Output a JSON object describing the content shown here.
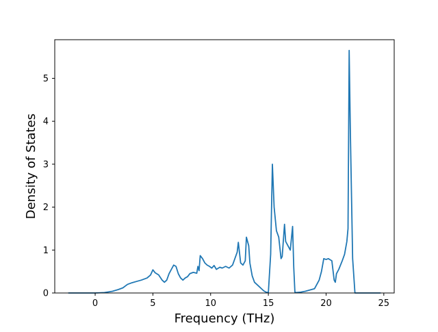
{
  "chart_data": {
    "type": "line",
    "title": "",
    "xlabel": "Frequency (THz)",
    "ylabel": "Density of States",
    "xlim": [
      -3.5,
      25.9
    ],
    "ylim": [
      0,
      5.9
    ],
    "xticks": [
      0,
      5,
      10,
      15,
      20,
      25
    ],
    "yticks": [
      0,
      1,
      2,
      3,
      4,
      5
    ],
    "grid": false,
    "legend": "none",
    "line_color": "#1f77b4",
    "series": [
      {
        "x": [
          -2.3,
          -1.0,
          0.0,
          0.8,
          1.5,
          2.0,
          2.4,
          2.8,
          3.2,
          3.6,
          4.0,
          4.5,
          4.8,
          5.0,
          5.2,
          5.5,
          5.8,
          6.0,
          6.2,
          6.4,
          6.6,
          6.8,
          7.0,
          7.2,
          7.4,
          7.6,
          7.8,
          8.0,
          8.2,
          8.5,
          8.8,
          8.9,
          9.0,
          9.1,
          9.3,
          9.5,
          9.7,
          9.9,
          10.1,
          10.3,
          10.5,
          10.8,
          11.0,
          11.3,
          11.6,
          11.9,
          12.1,
          12.3,
          12.4,
          12.6,
          12.8,
          13.0,
          13.1,
          13.3,
          13.4,
          13.6,
          13.8,
          14.0,
          14.2,
          14.4,
          14.6,
          14.8,
          15.0,
          15.2,
          15.35,
          15.5,
          15.7,
          15.9,
          16.1,
          16.2,
          16.4,
          16.5,
          16.7,
          16.9,
          17.1,
          17.2,
          17.3,
          17.4,
          17.8,
          18.2,
          18.6,
          19.0,
          19.2,
          19.4,
          19.6,
          19.8,
          20.0,
          20.2,
          20.5,
          20.7,
          20.8,
          20.9,
          21.1,
          21.4,
          21.6,
          21.8,
          21.9,
          22.0,
          22.1,
          22.3,
          22.5,
          23.0,
          24.0,
          24.7
        ],
        "y": [
          0.0,
          0.0,
          0.0,
          0.01,
          0.04,
          0.08,
          0.12,
          0.2,
          0.24,
          0.27,
          0.3,
          0.35,
          0.42,
          0.54,
          0.47,
          0.42,
          0.3,
          0.25,
          0.3,
          0.45,
          0.55,
          0.65,
          0.62,
          0.45,
          0.35,
          0.3,
          0.35,
          0.38,
          0.45,
          0.48,
          0.46,
          0.62,
          0.52,
          0.87,
          0.8,
          0.7,
          0.65,
          0.62,
          0.58,
          0.64,
          0.55,
          0.6,
          0.58,
          0.62,
          0.58,
          0.65,
          0.8,
          0.95,
          1.18,
          0.7,
          0.65,
          0.75,
          1.3,
          1.1,
          0.7,
          0.4,
          0.25,
          0.2,
          0.15,
          0.1,
          0.05,
          0.02,
          0.01,
          0.9,
          3.0,
          2.0,
          1.45,
          1.3,
          0.8,
          0.85,
          1.6,
          1.2,
          1.1,
          1.0,
          1.55,
          0.6,
          0.02,
          0.01,
          0.02,
          0.04,
          0.07,
          0.1,
          0.2,
          0.3,
          0.5,
          0.8,
          0.78,
          0.8,
          0.75,
          0.3,
          0.25,
          0.45,
          0.55,
          0.75,
          0.9,
          1.2,
          1.5,
          5.65,
          3.8,
          0.8,
          0.0,
          0.0,
          0.0,
          0.0
        ]
      }
    ]
  }
}
